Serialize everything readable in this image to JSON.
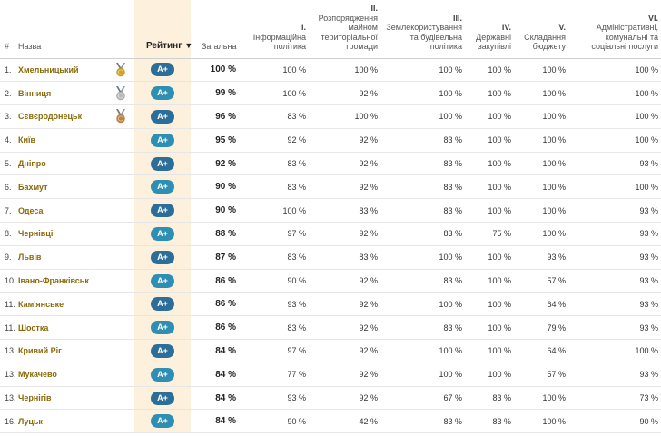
{
  "headers": {
    "num": "#",
    "name": "Назва",
    "rating": "Рейтинг",
    "sort_icon": "▼",
    "total": "Загальна",
    "policies": [
      {
        "numeral": "I.",
        "title": "Інформаційна політика"
      },
      {
        "numeral": "II.",
        "title": "Розпорядження майном територіальної громади"
      },
      {
        "numeral": "III.",
        "title": "Землекористування та будівельна політика"
      },
      {
        "numeral": "IV.",
        "title": "Державні закупівлі"
      },
      {
        "numeral": "V.",
        "title": "Складання бюджету"
      },
      {
        "numeral": "VI.",
        "title": "Адміністративні, комунальні та соціальні послуги"
      }
    ]
  },
  "medal_colors": {
    "gold": "#d6a21a",
    "silver": "#b9b9b9",
    "bronze": "#c77f3c"
  },
  "accent_colors": {
    "badge": "#2e8fb4",
    "badge_dark": "#2b6e9a",
    "rating_bg": "#fdf0dd",
    "city_text": "#8a6a0a"
  },
  "rows": [
    {
      "num": "1.",
      "city": "Хмельницький",
      "medal": "gold",
      "badge": "A+",
      "total": "100 %",
      "v": [
        "100 %",
        "100 %",
        "100 %",
        "100 %",
        "100 %",
        "100 %"
      ]
    },
    {
      "num": "2.",
      "city": "Вінниця",
      "medal": "silver",
      "badge": "A+",
      "total": "99 %",
      "v": [
        "100 %",
        "92 %",
        "100 %",
        "100 %",
        "100 %",
        "100 %"
      ]
    },
    {
      "num": "3.",
      "city": "Сєвєродонецьк",
      "medal": "bronze",
      "badge": "A+",
      "total": "96 %",
      "v": [
        "83 %",
        "100 %",
        "100 %",
        "100 %",
        "100 %",
        "100 %"
      ]
    },
    {
      "num": "4.",
      "city": "Київ",
      "medal": "",
      "badge": "A+",
      "total": "95 %",
      "v": [
        "92 %",
        "92 %",
        "83 %",
        "100 %",
        "100 %",
        "100 %"
      ]
    },
    {
      "num": "5.",
      "city": "Дніпро",
      "medal": "",
      "badge": "A+",
      "total": "92 %",
      "v": [
        "83 %",
        "92 %",
        "83 %",
        "100 %",
        "100 %",
        "93 %"
      ]
    },
    {
      "num": "6.",
      "city": "Бахмут",
      "medal": "",
      "badge": "A+",
      "total": "90 %",
      "v": [
        "83 %",
        "92 %",
        "83 %",
        "100 %",
        "100 %",
        "100 %"
      ]
    },
    {
      "num": "7.",
      "city": "Одеса",
      "medal": "",
      "badge": "A+",
      "total": "90 %",
      "v": [
        "100 %",
        "83 %",
        "83 %",
        "100 %",
        "100 %",
        "93 %"
      ]
    },
    {
      "num": "8.",
      "city": "Чернівці",
      "medal": "",
      "badge": "A+",
      "total": "88 %",
      "v": [
        "97 %",
        "92 %",
        "83 %",
        "75 %",
        "100 %",
        "93 %"
      ]
    },
    {
      "num": "9.",
      "city": "Львів",
      "medal": "",
      "badge": "A+",
      "total": "87 %",
      "v": [
        "83 %",
        "83 %",
        "100 %",
        "100 %",
        "93 %",
        "93 %"
      ]
    },
    {
      "num": "10.",
      "city": "Івано-Франківськ",
      "medal": "",
      "badge": "A+",
      "total": "86 %",
      "v": [
        "90 %",
        "92 %",
        "83 %",
        "100 %",
        "57 %",
        "93 %"
      ]
    },
    {
      "num": "11.",
      "city": "Кам'янське",
      "medal": "",
      "badge": "A+",
      "total": "86 %",
      "v": [
        "93 %",
        "92 %",
        "100 %",
        "100 %",
        "64 %",
        "93 %"
      ]
    },
    {
      "num": "11.",
      "city": "Шостка",
      "medal": "",
      "badge": "A+",
      "total": "86 %",
      "v": [
        "83 %",
        "92 %",
        "83 %",
        "100 %",
        "79 %",
        "93 %"
      ]
    },
    {
      "num": "13.",
      "city": "Кривий Ріг",
      "medal": "",
      "badge": "A+",
      "total": "84 %",
      "v": [
        "97 %",
        "92 %",
        "100 %",
        "100 %",
        "64 %",
        "100 %"
      ]
    },
    {
      "num": "13.",
      "city": "Мукачево",
      "medal": "",
      "badge": "A+",
      "total": "84 %",
      "v": [
        "77 %",
        "92 %",
        "100 %",
        "100 %",
        "57 %",
        "93 %"
      ]
    },
    {
      "num": "13.",
      "city": "Чернігів",
      "medal": "",
      "badge": "A+",
      "total": "84 %",
      "v": [
        "93 %",
        "92 %",
        "67 %",
        "83 %",
        "100 %",
        "73 %"
      ]
    },
    {
      "num": "16.",
      "city": "Луцьк",
      "medal": "",
      "badge": "A+",
      "total": "84 %",
      "v": [
        "90 %",
        "42 %",
        "83 %",
        "83 %",
        "100 %",
        "90 %"
      ]
    }
  ]
}
